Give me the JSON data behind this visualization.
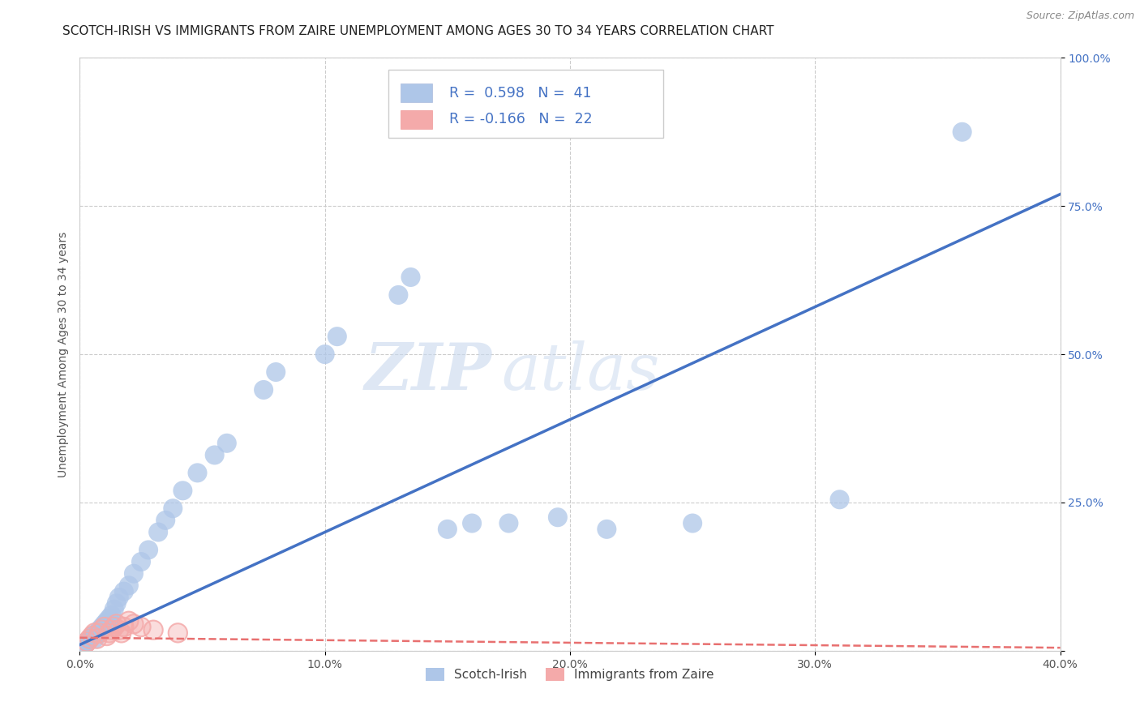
{
  "title": "SCOTCH-IRISH VS IMMIGRANTS FROM ZAIRE UNEMPLOYMENT AMONG AGES 30 TO 34 YEARS CORRELATION CHART",
  "source": "Source: ZipAtlas.com",
  "ylabel": "Unemployment Among Ages 30 to 34 years",
  "xlim": [
    0.0,
    0.4
  ],
  "ylim": [
    0.0,
    1.0
  ],
  "xticks": [
    0.0,
    0.1,
    0.2,
    0.3,
    0.4
  ],
  "yticks": [
    0.0,
    0.25,
    0.5,
    0.75,
    1.0
  ],
  "xticklabels": [
    "0.0%",
    "10.0%",
    "20.0%",
    "30.0%",
    "40.0%"
  ],
  "yticklabels": [
    "",
    "25.0%",
    "50.0%",
    "75.0%",
    "100.0%"
  ],
  "blue_scatter": [
    [
      0.002,
      0.01
    ],
    [
      0.003,
      0.015
    ],
    [
      0.004,
      0.02
    ],
    [
      0.005,
      0.025
    ],
    [
      0.006,
      0.02
    ],
    [
      0.007,
      0.03
    ],
    [
      0.008,
      0.035
    ],
    [
      0.009,
      0.04
    ],
    [
      0.01,
      0.045
    ],
    [
      0.011,
      0.05
    ],
    [
      0.012,
      0.055
    ],
    [
      0.013,
      0.06
    ],
    [
      0.014,
      0.07
    ],
    [
      0.015,
      0.08
    ],
    [
      0.016,
      0.09
    ],
    [
      0.018,
      0.1
    ],
    [
      0.02,
      0.11
    ],
    [
      0.022,
      0.13
    ],
    [
      0.025,
      0.15
    ],
    [
      0.028,
      0.17
    ],
    [
      0.032,
      0.2
    ],
    [
      0.035,
      0.22
    ],
    [
      0.038,
      0.24
    ],
    [
      0.042,
      0.27
    ],
    [
      0.048,
      0.3
    ],
    [
      0.055,
      0.33
    ],
    [
      0.06,
      0.35
    ],
    [
      0.075,
      0.44
    ],
    [
      0.08,
      0.47
    ],
    [
      0.1,
      0.5
    ],
    [
      0.105,
      0.53
    ],
    [
      0.13,
      0.6
    ],
    [
      0.135,
      0.63
    ],
    [
      0.15,
      0.205
    ],
    [
      0.16,
      0.215
    ],
    [
      0.175,
      0.215
    ],
    [
      0.195,
      0.225
    ],
    [
      0.215,
      0.205
    ],
    [
      0.25,
      0.215
    ],
    [
      0.31,
      0.255
    ],
    [
      0.36,
      0.875
    ]
  ],
  "pink_scatter": [
    [
      0.002,
      0.01
    ],
    [
      0.003,
      0.015
    ],
    [
      0.004,
      0.02
    ],
    [
      0.005,
      0.025
    ],
    [
      0.006,
      0.03
    ],
    [
      0.007,
      0.02
    ],
    [
      0.008,
      0.03
    ],
    [
      0.009,
      0.035
    ],
    [
      0.01,
      0.04
    ],
    [
      0.011,
      0.025
    ],
    [
      0.012,
      0.03
    ],
    [
      0.013,
      0.035
    ],
    [
      0.014,
      0.04
    ],
    [
      0.015,
      0.045
    ],
    [
      0.016,
      0.035
    ],
    [
      0.017,
      0.03
    ],
    [
      0.018,
      0.04
    ],
    [
      0.02,
      0.05
    ],
    [
      0.022,
      0.045
    ],
    [
      0.025,
      0.04
    ],
    [
      0.03,
      0.035
    ],
    [
      0.04,
      0.03
    ]
  ],
  "blue_line_color": "#4472C4",
  "pink_line_color": "#E87070",
  "blue_scatter_color": "#AEC6E8",
  "pink_scatter_color": "#F4AAAA",
  "watermark_zip": "ZIP",
  "watermark_atlas": "atlas",
  "legend_blue_R": "R =  0.598",
  "legend_blue_N": "N =  41",
  "legend_pink_R": "R = -0.166",
  "legend_pink_N": "N =  22",
  "legend_label_blue": "Scotch-Irish",
  "legend_label_pink": "Immigrants from Zaire",
  "grid_color": "#CCCCCC",
  "background_color": "#FFFFFF",
  "title_fontsize": 11,
  "axis_label_fontsize": 10,
  "tick_fontsize": 10,
  "source_fontsize": 9
}
